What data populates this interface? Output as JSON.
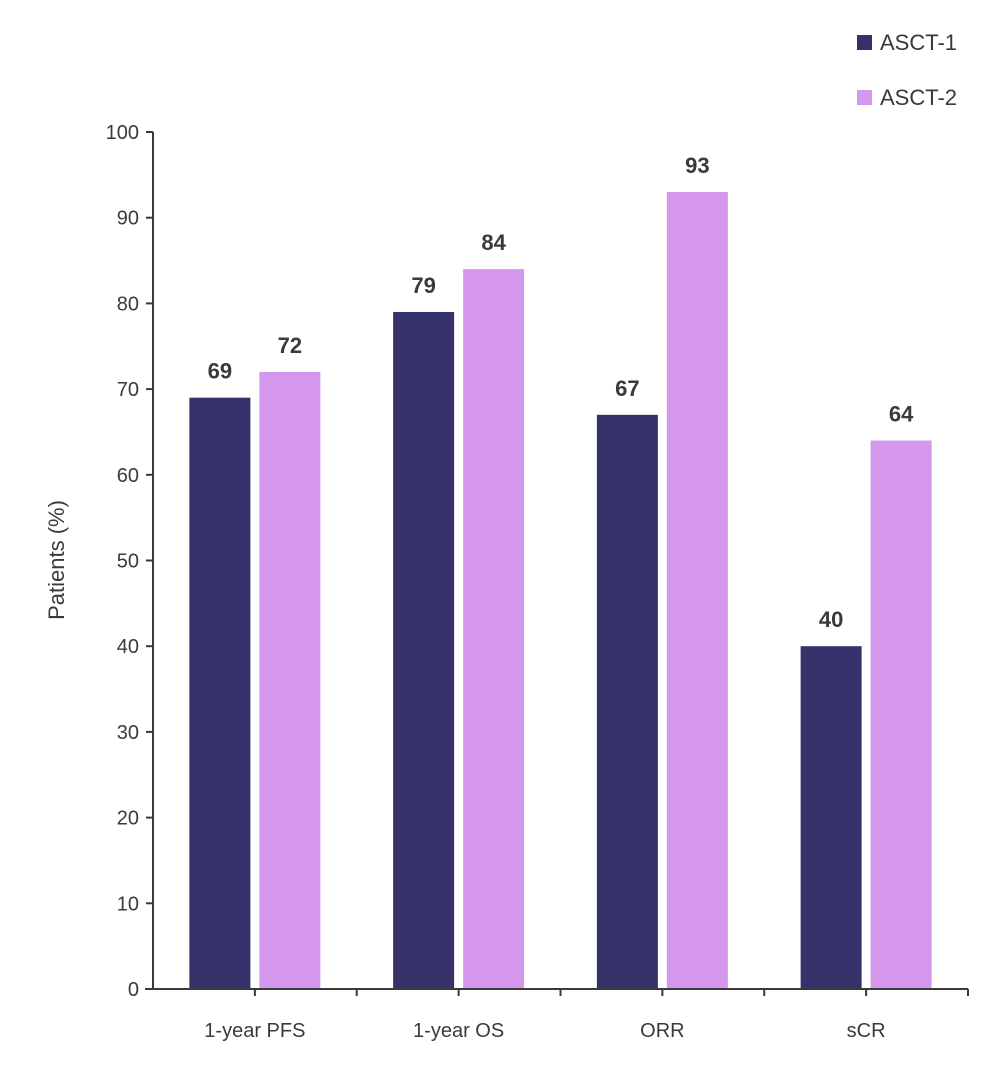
{
  "chart_data": {
    "type": "bar",
    "title": "",
    "xlabel": "",
    "ylabel": "Patients (%)",
    "ylim": [
      0,
      100
    ],
    "yticks": [
      0,
      10,
      20,
      30,
      40,
      50,
      60,
      70,
      80,
      90,
      100
    ],
    "categories": [
      "1-year PFS",
      "1-year OS",
      "ORR",
      "sCR"
    ],
    "series": [
      {
        "name": "ASCT-1",
        "color": "#35316a",
        "values": [
          69,
          79,
          67,
          40
        ]
      },
      {
        "name": "ASCT-2",
        "color": "#d597ec",
        "values": [
          72,
          84,
          93,
          64
        ]
      }
    ],
    "legend_position": "top-right",
    "grid": false,
    "data_labels": true
  }
}
